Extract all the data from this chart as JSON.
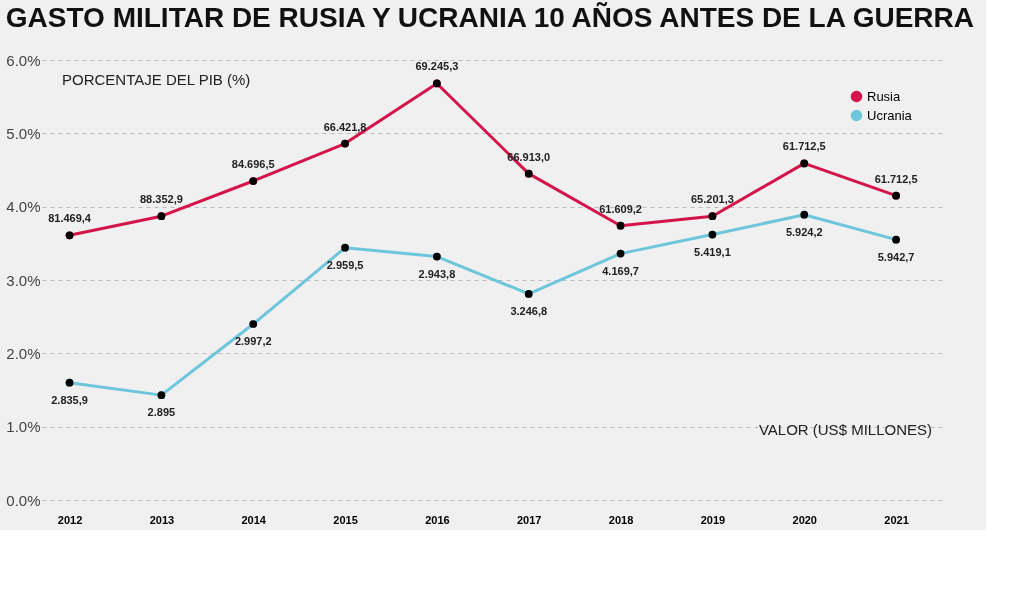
{
  "chart_data": {
    "type": "line",
    "title": "GASTO MILITAR DE RUSIA Y UCRANIA 10 AÑOS ANTES DE LA GUERRA",
    "ylabel": "PORCENTAJE DEL PIB (%)",
    "categories": [
      "2012",
      "2013",
      "2014",
      "2015",
      "2016",
      "2017",
      "2018",
      "2019",
      "2020",
      "2021"
    ],
    "series": [
      {
        "name": "Rusia",
        "color": "#d4144a",
        "values": [
          3.61,
          3.87,
          4.35,
          4.86,
          5.68,
          4.45,
          3.74,
          3.87,
          4.59,
          4.15
        ]
      },
      {
        "name": "Ucrania",
        "color": "#6ec6dc",
        "values": [
          1.6,
          1.43,
          2.4,
          3.44,
          3.32,
          2.81,
          3.36,
          3.62,
          3.89,
          3.55
        ]
      }
    ],
    "ylim": [
      0,
      6
    ],
    "yticks": [
      {
        "value": 0,
        "label": "0.0%"
      },
      {
        "value": 1,
        "label": "1.0%"
      },
      {
        "value": 2,
        "label": "2.0%"
      },
      {
        "value": 3,
        "label": "3.0%"
      },
      {
        "value": 4,
        "label": "4.0%"
      },
      {
        "value": 5,
        "label": "5.0%"
      },
      {
        "value": 6,
        "label": "6.0%"
      }
    ],
    "grid": "y",
    "legend": "top right",
    "marker": "circle",
    "line_style": "solid",
    "annotations": [
      {
        "text": "81.469,4",
        "x": "2012",
        "y": 3.61
      },
      {
        "text": "88.352,9",
        "x": "2013",
        "y": 3.87
      },
      {
        "text": "84.696,5",
        "x": "2014",
        "y": 4.35
      },
      {
        "text": "66.421,8",
        "x": "2015",
        "y": 4.86
      },
      {
        "text": "69.245,3",
        "x": "2016",
        "y": 5.68
      },
      {
        "text": "66.913,0",
        "x": "2017",
        "y": 4.45
      },
      {
        "text": "61.609,2",
        "x": "2018",
        "y": 3.74
      },
      {
        "text": "65.201,3",
        "x": "2019",
        "y": 3.87
      },
      {
        "text": "61.712,5",
        "x": "2020",
        "y": 4.59
      },
      {
        "text": "61.712,5",
        "x": "2021",
        "y": 4.15
      },
      {
        "text": "2.835,9",
        "x": "2012",
        "y": 1.6
      },
      {
        "text": "2.895",
        "x": "2013",
        "y": 1.43
      },
      {
        "text": "2.997,2",
        "x": "2014",
        "y": 2.4
      },
      {
        "text": "2.959,5",
        "x": "2015",
        "y": 3.44
      },
      {
        "text": "2.943,8",
        "x": "2016",
        "y": 3.32
      },
      {
        "text": "3.246,8",
        "x": "2017",
        "y": 2.81
      },
      {
        "text": "4.169,7",
        "x": "2018",
        "y": 3.36
      },
      {
        "text": "5.419,1",
        "x": "2019",
        "y": 3.62
      },
      {
        "text": "5.924,2",
        "x": "2020",
        "y": 3.89
      },
      {
        "text": "5.942,7",
        "x": "2021",
        "y": 3.55
      },
      "VALOR (US$ MILLONES)"
    ]
  }
}
